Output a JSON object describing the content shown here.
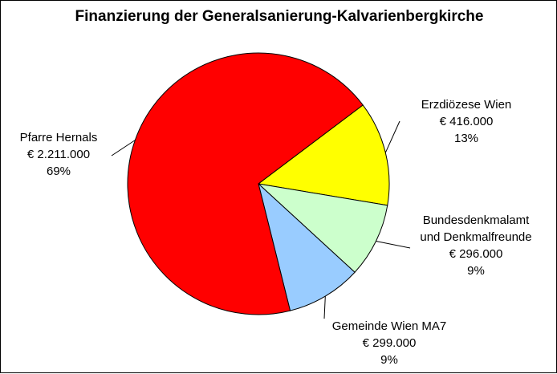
{
  "chart_data": {
    "type": "pie",
    "title": "Finanzierung der Generalsanierung-Kalvarienbergkirche",
    "start_category": "Erzdiözese Wien",
    "slices": [
      {
        "label_lines": [
          "Erzdiözese Wien"
        ],
        "value_text": "€ 416.000",
        "percent_text": "13%",
        "value": 416000,
        "color": "#ffff00"
      },
      {
        "label_lines": [
          "Bundesdenkmalamt",
          "und Denkmalfreunde"
        ],
        "value_text": "€ 296.000",
        "percent_text": "9%",
        "value": 296000,
        "color": "#ccffcc"
      },
      {
        "label_lines": [
          "Gemeinde Wien MA7"
        ],
        "value_text": "€ 299.000",
        "percent_text": "9%",
        "value": 299000,
        "color": "#99ccff"
      },
      {
        "label_lines": [
          "Pfarre Hernals"
        ],
        "value_text": "€ 2.211.000",
        "percent_text": "69%",
        "value": 2211000,
        "color": "#ff0000"
      }
    ]
  }
}
